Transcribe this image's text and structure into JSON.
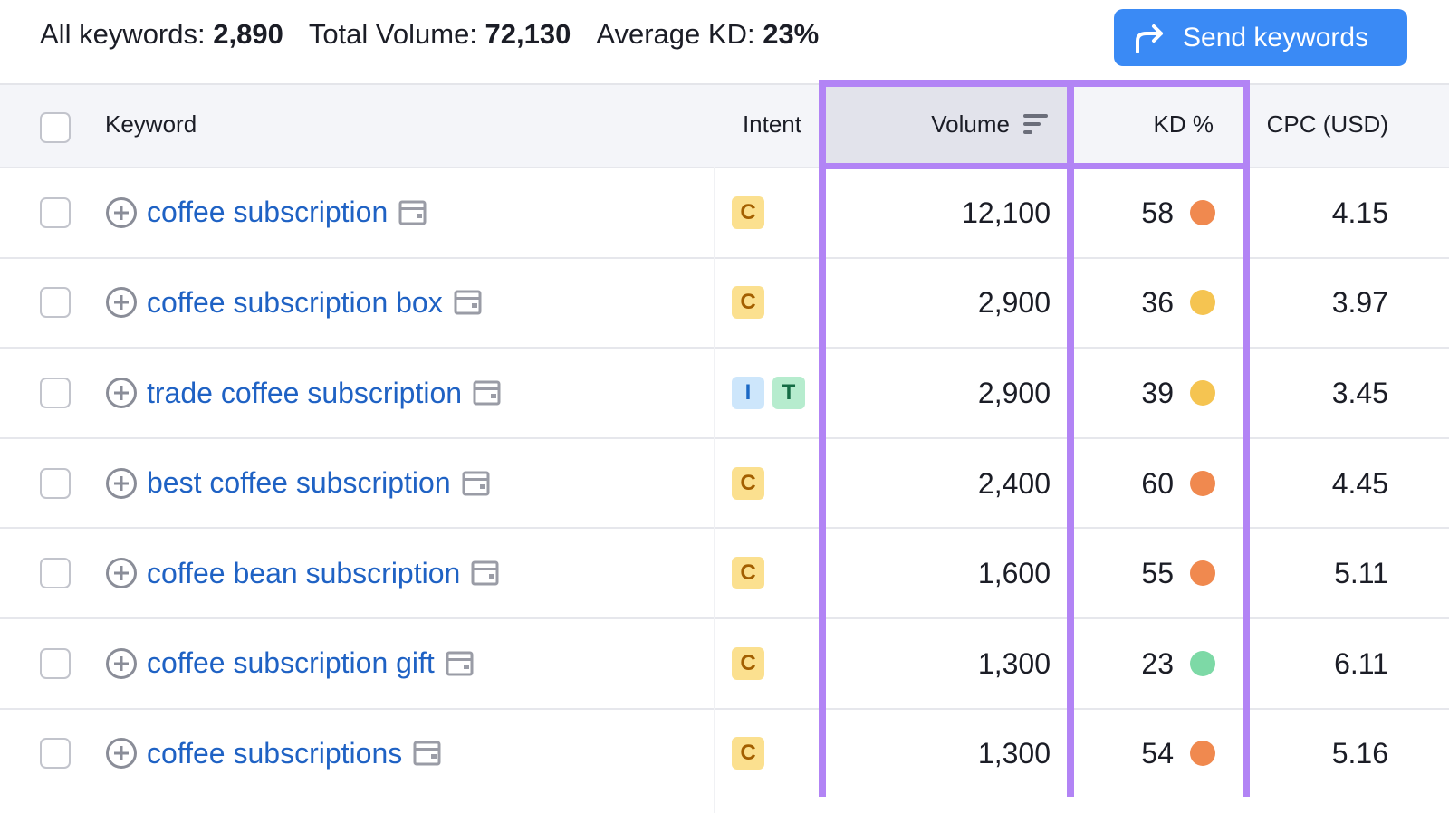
{
  "summary": [
    {
      "label": "All keywords:",
      "value": "2,890"
    },
    {
      "label": "Total Volume:",
      "value": "72,130"
    },
    {
      "label": "Average KD:",
      "value": "23%"
    }
  ],
  "button": "Send keywords",
  "table": {
    "columns": [
      "Keyword",
      "Intent",
      "Volume",
      "KD %",
      "CPC (USD)"
    ],
    "rows": [
      {
        "keyword": "coffee subscription",
        "intent": [
          "C"
        ],
        "volume": "12,100",
        "kd": "58",
        "kd_color": "#f0894f",
        "cpc": "4.15"
      },
      {
        "keyword": "coffee subscription box",
        "intent": [
          "C"
        ],
        "volume": "2,900",
        "kd": "36",
        "kd_color": "#f5c451",
        "cpc": "3.97"
      },
      {
        "keyword": "trade coffee subscription",
        "intent": [
          "I",
          "T"
        ],
        "volume": "2,900",
        "kd": "39",
        "kd_color": "#f5c451",
        "cpc": "3.45"
      },
      {
        "keyword": "best coffee subscription",
        "intent": [
          "C"
        ],
        "volume": "2,400",
        "kd": "60",
        "kd_color": "#f0894f",
        "cpc": "4.45"
      },
      {
        "keyword": "coffee bean subscription",
        "intent": [
          "C"
        ],
        "volume": "1,600",
        "kd": "55",
        "kd_color": "#f0894f",
        "cpc": "5.11"
      },
      {
        "keyword": "coffee subscription gift",
        "intent": [
          "C"
        ],
        "volume": "1,300",
        "kd": "23",
        "kd_color": "#7dd9a6",
        "cpc": "6.11"
      },
      {
        "keyword": "coffee subscriptions",
        "intent": [
          "C"
        ],
        "volume": "1,300",
        "kd": "54",
        "kd_color": "#f0894f",
        "cpc": "5.16"
      }
    ]
  }
}
